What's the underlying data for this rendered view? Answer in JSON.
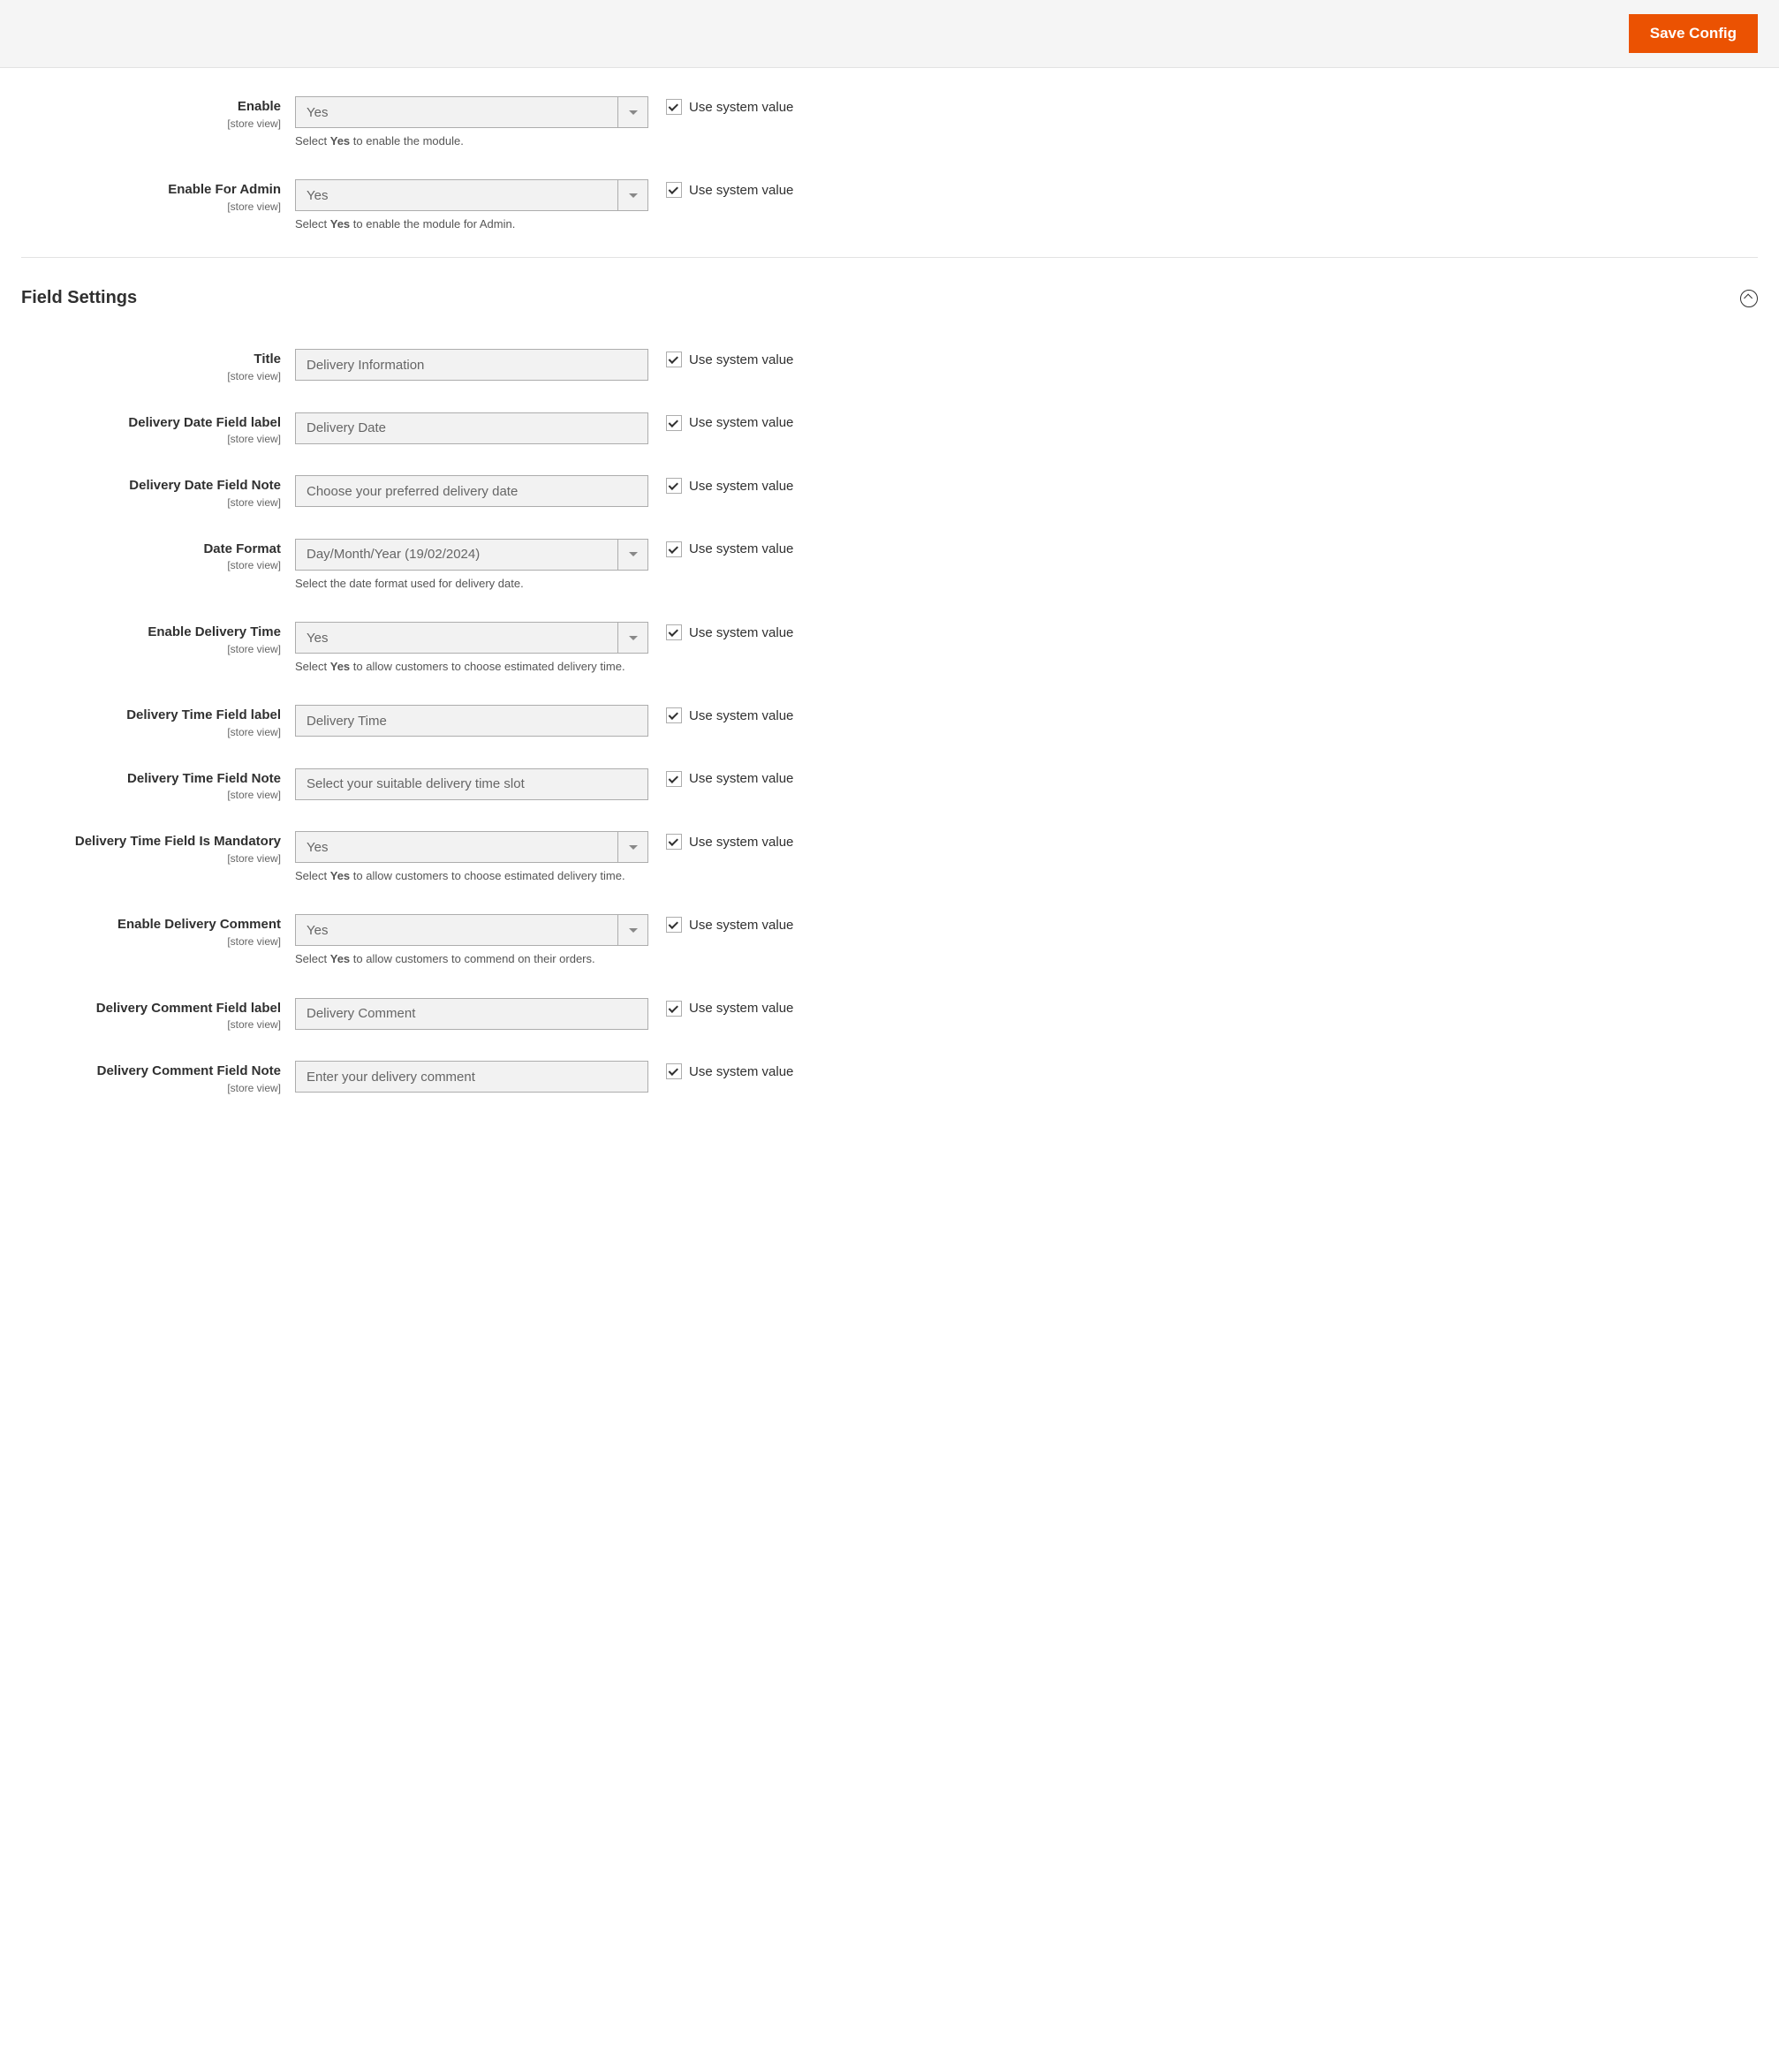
{
  "header": {
    "save_config_label": "Save Config"
  },
  "scope_label": "[store view]",
  "use_system_value_label": "Use system value",
  "general_section": {
    "enable": {
      "label": "Enable",
      "value": "Yes",
      "note_prefix": "Select ",
      "note_bold": "Yes",
      "note_suffix": " to enable the module."
    },
    "enable_for_admin": {
      "label": "Enable For Admin",
      "value": "Yes",
      "note_prefix": "Select ",
      "note_bold": "Yes",
      "note_suffix": " to enable the module for Admin."
    }
  },
  "field_settings_section": {
    "title_label": "Field Settings",
    "title": {
      "label": "Title",
      "value": "Delivery Information"
    },
    "delivery_date_label": {
      "label": "Delivery Date Field label",
      "value": "Delivery Date"
    },
    "delivery_date_note": {
      "label": "Delivery Date Field Note",
      "value": "Choose your preferred delivery date"
    },
    "date_format": {
      "label": "Date Format",
      "value": "Day/Month/Year (19/02/2024)",
      "note": "Select the date format used for delivery date."
    },
    "enable_delivery_time": {
      "label": "Enable Delivery Time",
      "value": "Yes",
      "note_prefix": "Select ",
      "note_bold": "Yes",
      "note_suffix": " to allow customers to choose estimated delivery time."
    },
    "delivery_time_label": {
      "label": "Delivery Time Field label",
      "value": "Delivery Time"
    },
    "delivery_time_note": {
      "label": "Delivery Time Field Note",
      "value": "Select your suitable delivery time slot"
    },
    "delivery_time_mandatory": {
      "label": "Delivery Time Field Is Mandatory",
      "value": "Yes",
      "note_prefix": "Select ",
      "note_bold": "Yes",
      "note_suffix": " to allow customers to choose estimated delivery time."
    },
    "enable_delivery_comment": {
      "label": "Enable Delivery Comment",
      "value": "Yes",
      "note_prefix": "Select ",
      "note_bold": "Yes",
      "note_suffix": " to allow customers to commend on their orders."
    },
    "delivery_comment_label": {
      "label": "Delivery Comment Field label",
      "value": "Delivery Comment"
    },
    "delivery_comment_note": {
      "label": "Delivery Comment Field Note",
      "value": "Enter your delivery comment"
    }
  }
}
